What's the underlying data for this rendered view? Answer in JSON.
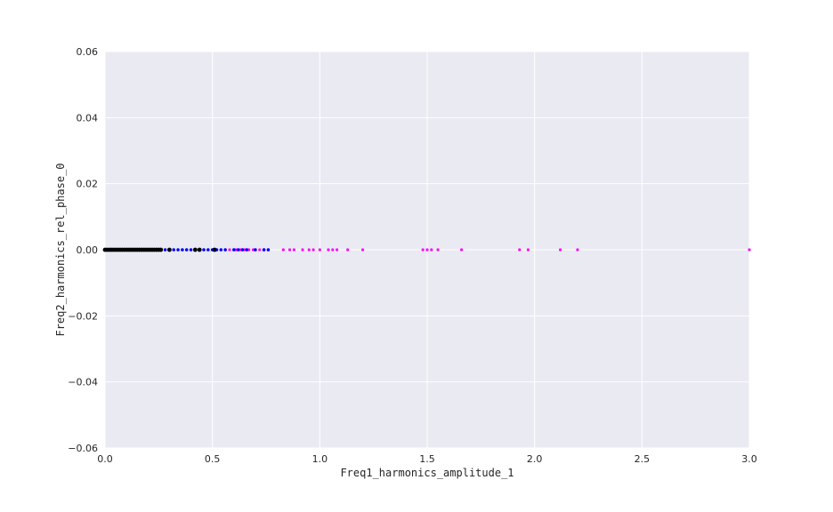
{
  "chart_data": {
    "type": "scatter",
    "title": "",
    "xlabel": "Freq1_harmonics_amplitude_1",
    "ylabel": "Freq2_harmonics_rel_phase_0",
    "xlim": [
      0.0,
      3.0
    ],
    "ylim": [
      -0.06,
      0.06
    ],
    "x_ticks": [
      "0.0",
      "0.5",
      "1.0",
      "1.5",
      "2.0",
      "2.5",
      "3.0"
    ],
    "y_ticks": [
      "0.06",
      "0.04",
      "0.02",
      "0.00",
      "−0.02",
      "−0.04",
      "−0.06"
    ],
    "grid": true,
    "legend": "none",
    "background_color": "#eaeaf2",
    "series": [
      {
        "color": "#ff00ff",
        "x": [
          0.56,
          0.58,
          0.61,
          0.63,
          0.65,
          0.67,
          0.69,
          0.7,
          0.72,
          0.74,
          0.76,
          0.83,
          0.86,
          0.88,
          0.92,
          0.95,
          0.97,
          1.0,
          1.04,
          1.06,
          1.08,
          1.13,
          1.2,
          1.48,
          1.5,
          1.52,
          1.55,
          1.66,
          1.93,
          1.97,
          2.12,
          2.2,
          3.0
        ],
        "y": [
          0,
          0,
          0,
          0,
          0,
          0,
          0,
          0,
          0,
          0,
          0,
          0,
          0,
          0,
          0,
          0,
          0,
          0,
          0,
          0,
          0,
          0,
          0,
          0,
          0,
          0,
          0,
          0,
          0,
          0,
          0,
          0,
          0
        ]
      },
      {
        "color": "#0000ff",
        "x": [
          0.02,
          0.05,
          0.08,
          0.1,
          0.12,
          0.15,
          0.18,
          0.2,
          0.22,
          0.25,
          0.28,
          0.3,
          0.32,
          0.34,
          0.36,
          0.38,
          0.4,
          0.42,
          0.44,
          0.46,
          0.48,
          0.5,
          0.52,
          0.54,
          0.56,
          0.6,
          0.62,
          0.64,
          0.66,
          0.7,
          0.74,
          0.76
        ],
        "y": [
          0,
          0,
          0,
          0,
          0,
          0,
          0,
          0,
          0,
          0,
          0,
          0,
          0,
          0,
          0,
          0,
          0,
          0,
          0,
          0,
          0,
          0,
          0,
          0,
          0,
          0,
          0,
          0,
          0,
          0,
          0,
          0
        ]
      },
      {
        "color": "#000000",
        "x": [
          0.0,
          0.01,
          0.02,
          0.03,
          0.04,
          0.05,
          0.06,
          0.07,
          0.08,
          0.09,
          0.1,
          0.11,
          0.12,
          0.13,
          0.14,
          0.15,
          0.16,
          0.17,
          0.18,
          0.19,
          0.2,
          0.21,
          0.22,
          0.23,
          0.24,
          0.25,
          0.26,
          0.3,
          0.42,
          0.44,
          0.51
        ],
        "y": [
          0,
          0,
          0,
          0,
          0,
          0,
          0,
          0,
          0,
          0,
          0,
          0,
          0,
          0,
          0,
          0,
          0,
          0,
          0,
          0,
          0,
          0,
          0,
          0,
          0,
          0,
          0,
          0,
          0,
          0,
          0
        ]
      }
    ]
  }
}
